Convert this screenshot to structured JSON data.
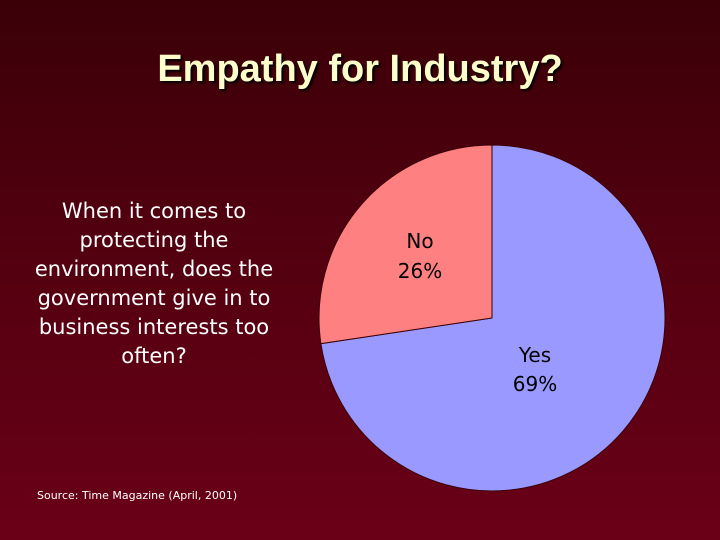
{
  "slide": {
    "title": "Empathy for Industry?",
    "question": "When it comes to protecting the environment, does the government give in to business interests too often?",
    "source": "Source: Time Magazine (April, 2001)"
  },
  "chart_data": {
    "type": "pie",
    "title": "",
    "slices": [
      {
        "label": "Yes",
        "percent_label": "69%",
        "value": 69,
        "color": "#9999ff"
      },
      {
        "label": "No",
        "percent_label": "26%",
        "value": 26,
        "color": "#ff8080"
      }
    ],
    "legend": "none"
  }
}
